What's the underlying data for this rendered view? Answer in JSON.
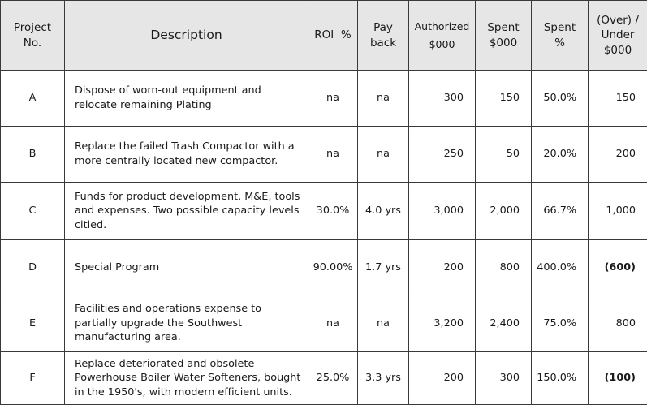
{
  "headers": {
    "project_no": [
      "Project",
      "No."
    ],
    "description": "Description",
    "roi": "ROI  %",
    "payback": [
      "Pay",
      "back"
    ],
    "authorized": [
      "Authorized",
      "$000"
    ],
    "spent": [
      "Spent",
      "$000"
    ],
    "spent_pct": [
      "Spent",
      "%"
    ],
    "over_under": [
      "(Over) /",
      "Under",
      "$000"
    ]
  },
  "rows": [
    {
      "project": "A",
      "description": "Dispose of worn-out equipment and relocate remaining Plating",
      "roi": "na",
      "payback": "na",
      "authorized": "300",
      "spent": "150",
      "spent_pct": "50.0%",
      "over_under": "150"
    },
    {
      "project": "B",
      "description": "Replace the failed Trash Compactor with a more centrally located new compactor.",
      "roi": "na",
      "payback": "na",
      "authorized": "250",
      "spent": "50",
      "spent_pct": "20.0%",
      "over_under": "200"
    },
    {
      "project": "C",
      "description": "Funds for product development, M&E, tools and expenses. Two possible capacity levels citied.",
      "roi": "30.0%",
      "payback": "4.0 yrs",
      "authorized": "3,000",
      "spent": "2,000",
      "spent_pct": "66.7%",
      "over_under": "1,000"
    },
    {
      "project": "D",
      "description": "Special Program",
      "roi": "90.00%",
      "payback": "1.7 yrs",
      "authorized": "200",
      "spent": "800",
      "spent_pct": "400.0%",
      "over_under": "(600)"
    },
    {
      "project": "E",
      "description": "Facilities and operations expense to partially upgrade the Southwest manufacturing area.",
      "roi": "na",
      "payback": "na",
      "authorized": "3,200",
      "spent": "2,400",
      "spent_pct": "75.0%",
      "over_under": "800"
    },
    {
      "project": "F",
      "description": "Replace deteriorated and obsolete Powerhouse Boiler Water Softeners, bought in the 1950's, with modern efficient units.",
      "roi": "25.0%",
      "payback": "3.3 yrs",
      "authorized": "200",
      "spent": "300",
      "spent_pct": "150.0%",
      "over_under": "(100)"
    }
  ],
  "colors": {
    "header_bg": "#e6e6e6",
    "border": "#3a3a3a",
    "text": "#1a1a1a"
  }
}
